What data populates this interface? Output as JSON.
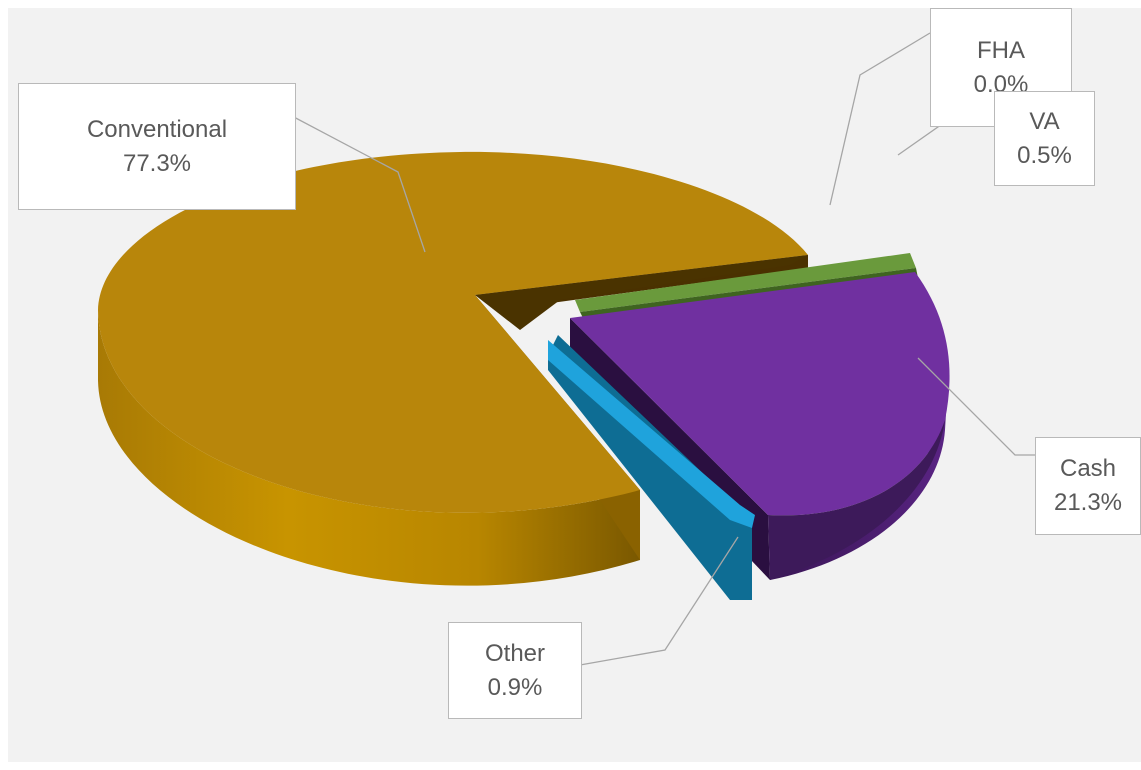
{
  "chart_data": {
    "type": "pie",
    "slices": [
      {
        "name": "Conventional",
        "value": 77.3,
        "label": "77.3%",
        "color": "#b8860b"
      },
      {
        "name": "FHA",
        "value": 0.0,
        "label": "0.0%",
        "color": "#c0504d"
      },
      {
        "name": "VA",
        "value": 0.5,
        "label": "0.5%",
        "color": "#6a9a3c"
      },
      {
        "name": "Cash",
        "value": 21.3,
        "label": "21.3%",
        "color": "#7030a0"
      },
      {
        "name": "Other",
        "value": 0.9,
        "label": "0.9%",
        "color": "#1fa3dc"
      }
    ],
    "style": "3d-exploded",
    "background": "#f2f2f2"
  }
}
